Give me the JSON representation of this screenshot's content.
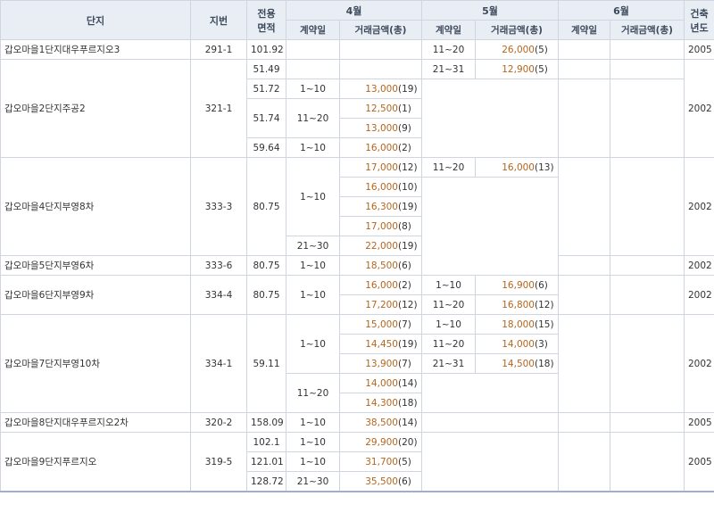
{
  "header": {
    "complex": "단지",
    "lot": "지번",
    "area_line1": "전용",
    "area_line2": "면적",
    "month_apr": "4월",
    "month_may": "5월",
    "month_jun": "6월",
    "year_line1": "건축",
    "year_line2": "년도",
    "contract_day": "계약일",
    "amount": "거래금액(총)"
  },
  "rows": [
    {
      "complex": "갑오마을1단지대우푸르지오3",
      "lot": "291-1",
      "area": "101.92",
      "apr_date": "",
      "apr_amt": "",
      "apr_cnt": "",
      "may_date": "11~20",
      "may_amt": "26,000",
      "may_cnt": "(5)",
      "jun_date": "",
      "jun_amt": "",
      "year": "2005"
    },
    {
      "complex": "갑오마을2단지주공2",
      "lot": "321-1",
      "area": "51.49",
      "apr_date": "",
      "apr_amt": "",
      "apr_cnt": "",
      "may_date": "21~31",
      "may_amt": "12,900",
      "may_cnt": "(5)",
      "jun_date": "",
      "jun_amt": "",
      "year": "2002"
    },
    {
      "complex": "",
      "lot": "",
      "area": "51.72",
      "apr_date": "1~10",
      "apr_amt": "13,000",
      "apr_cnt": "(19)",
      "may_date": "",
      "may_amt": "",
      "may_cnt": "",
      "jun_date": "",
      "jun_amt": "",
      "year": ""
    },
    {
      "complex": "",
      "lot": "",
      "area": "51.74",
      "apr_date": "11~20",
      "apr_amt": "12,500",
      "apr_cnt": "(1)",
      "may_date": "",
      "may_amt": "",
      "may_cnt": "",
      "jun_date": "",
      "jun_amt": "",
      "year": ""
    },
    {
      "complex": "",
      "lot": "",
      "area": "",
      "apr_date": "",
      "apr_amt": "13,000",
      "apr_cnt": "(9)",
      "may_date": "",
      "may_amt": "",
      "may_cnt": "",
      "jun_date": "",
      "jun_amt": "",
      "year": ""
    },
    {
      "complex": "",
      "lot": "",
      "area": "59.64",
      "apr_date": "1~10",
      "apr_amt": "16,000",
      "apr_cnt": "(2)",
      "may_date": "",
      "may_amt": "",
      "may_cnt": "",
      "jun_date": "",
      "jun_amt": "",
      "year": ""
    },
    {
      "complex": "갑오마을4단지부영8차",
      "lot": "333-3",
      "area": "80.75",
      "apr_date": "1~10",
      "apr_amt": "17,000",
      "apr_cnt": "(12)",
      "may_date": "11~20",
      "may_amt": "16,000",
      "may_cnt": "(13)",
      "jun_date": "",
      "jun_amt": "",
      "year": "2002"
    },
    {
      "complex": "",
      "lot": "",
      "area": "",
      "apr_date": "",
      "apr_amt": "16,000",
      "apr_cnt": "(10)",
      "may_date": "",
      "may_amt": "",
      "may_cnt": "",
      "jun_date": "",
      "jun_amt": "",
      "year": ""
    },
    {
      "complex": "",
      "lot": "",
      "area": "",
      "apr_date": "",
      "apr_amt": "16,300",
      "apr_cnt": "(19)",
      "may_date": "",
      "may_amt": "",
      "may_cnt": "",
      "jun_date": "",
      "jun_amt": "",
      "year": ""
    },
    {
      "complex": "",
      "lot": "",
      "area": "",
      "apr_date": "",
      "apr_amt": "17,000",
      "apr_cnt": "(8)",
      "may_date": "",
      "may_amt": "",
      "may_cnt": "",
      "jun_date": "",
      "jun_amt": "",
      "year": ""
    },
    {
      "complex": "",
      "lot": "",
      "area": "",
      "apr_date": "21~30",
      "apr_amt": "22,000",
      "apr_cnt": "(19)",
      "may_date": "",
      "may_amt": "",
      "may_cnt": "",
      "jun_date": "",
      "jun_amt": "",
      "year": ""
    },
    {
      "complex": "갑오마을5단지부영6차",
      "lot": "333-6",
      "area": "80.75",
      "apr_date": "1~10",
      "apr_amt": "18,500",
      "apr_cnt": "(6)",
      "may_date": "",
      "may_amt": "",
      "may_cnt": "",
      "jun_date": "",
      "jun_amt": "",
      "year": "2002"
    },
    {
      "complex": "갑오마을6단지부영9차",
      "lot": "334-4",
      "area": "80.75",
      "apr_date": "1~10",
      "apr_amt": "16,000",
      "apr_cnt": "(2)",
      "may_date": "1~10",
      "may_amt": "16,900",
      "may_cnt": "(6)",
      "jun_date": "",
      "jun_amt": "",
      "year": "2002"
    },
    {
      "complex": "",
      "lot": "",
      "area": "",
      "apr_date": "",
      "apr_amt": "17,200",
      "apr_cnt": "(12)",
      "may_date": "11~20",
      "may_amt": "16,800",
      "may_cnt": "(12)",
      "jun_date": "",
      "jun_amt": "",
      "year": ""
    },
    {
      "complex": "갑오마을7단지부영10차",
      "lot": "334-1",
      "area": "59.11",
      "apr_date": "1~10",
      "apr_amt": "15,000",
      "apr_cnt": "(7)",
      "may_date": "1~10",
      "may_amt": "18,000",
      "may_cnt": "(15)",
      "jun_date": "",
      "jun_amt": "",
      "year": "2002"
    },
    {
      "complex": "",
      "lot": "",
      "area": "",
      "apr_date": "",
      "apr_amt": "14,450",
      "apr_cnt": "(19)",
      "may_date": "11~20",
      "may_amt": "14,000",
      "may_cnt": "(3)",
      "jun_date": "",
      "jun_amt": "",
      "year": ""
    },
    {
      "complex": "",
      "lot": "",
      "area": "",
      "apr_date": "",
      "apr_amt": "13,900",
      "apr_cnt": "(7)",
      "may_date": "21~31",
      "may_amt": "14,500",
      "may_cnt": "(18)",
      "jun_date": "",
      "jun_amt": "",
      "year": ""
    },
    {
      "complex": "",
      "lot": "",
      "area": "",
      "apr_date": "11~20",
      "apr_amt": "14,000",
      "apr_cnt": "(14)",
      "may_date": "",
      "may_amt": "",
      "may_cnt": "",
      "jun_date": "",
      "jun_amt": "",
      "year": ""
    },
    {
      "complex": "",
      "lot": "",
      "area": "",
      "apr_date": "",
      "apr_amt": "14,300",
      "apr_cnt": "(18)",
      "may_date": "",
      "may_amt": "",
      "may_cnt": "",
      "jun_date": "",
      "jun_amt": "",
      "year": ""
    },
    {
      "complex": "갑오마을8단지대우푸르지오2차",
      "lot": "320-2",
      "area": "158.09",
      "apr_date": "1~10",
      "apr_amt": "38,500",
      "apr_cnt": "(14)",
      "may_date": "",
      "may_amt": "",
      "may_cnt": "",
      "jun_date": "",
      "jun_amt": "",
      "year": "2005"
    },
    {
      "complex": "갑오마을9단지푸르지오",
      "lot": "319-5",
      "area": "102.1",
      "apr_date": "1~10",
      "apr_amt": "29,900",
      "apr_cnt": "(20)",
      "may_date": "",
      "may_amt": "",
      "may_cnt": "",
      "jun_date": "",
      "jun_amt": "",
      "year": "2005"
    },
    {
      "complex": "",
      "lot": "",
      "area": "121.01",
      "apr_date": "1~10",
      "apr_amt": "31,700",
      "apr_cnt": "(5)",
      "may_date": "",
      "may_amt": "",
      "may_cnt": "",
      "jun_date": "",
      "jun_amt": "",
      "year": ""
    },
    {
      "complex": "",
      "lot": "",
      "area": "128.72",
      "apr_date": "21~30",
      "apr_amt": "35,500",
      "apr_cnt": "(6)",
      "may_date": "",
      "may_amt": "",
      "may_cnt": "",
      "jun_date": "",
      "jun_amt": "",
      "year": ""
    }
  ]
}
